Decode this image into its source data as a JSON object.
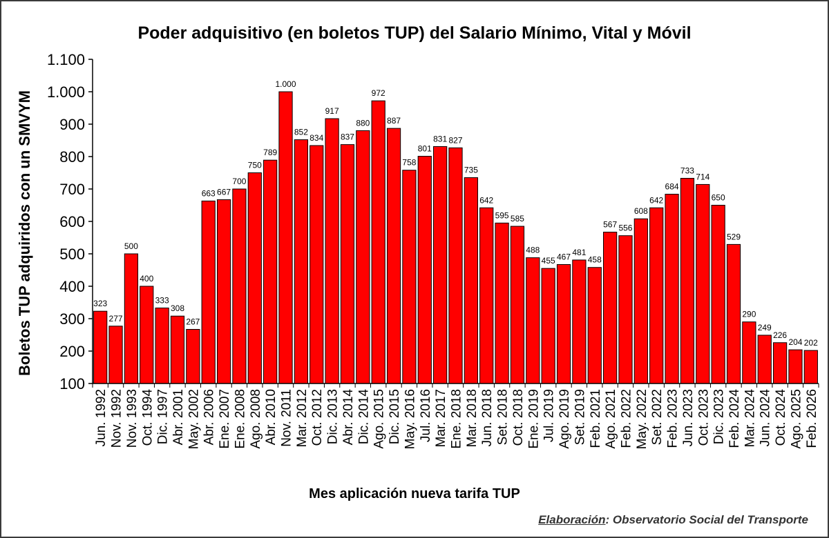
{
  "title": "Poder adquisitivo (en boletos TUP) del Salario Mínimo, Vital y Móvil",
  "credit": {
    "prefix": "Elaboración",
    "text": ": Observatorio Social del Transporte"
  },
  "colors": {
    "bar": "#ff0000",
    "bar_edge": "#000000",
    "axis": "#000000"
  },
  "chart_data": {
    "type": "bar",
    "title": "Poder adquisitivo (en boletos TUP) del Salario Mínimo, Vital y Móvil",
    "xlabel": "Mes aplicación nueva tarifa TUP",
    "ylabel": "Boletos TUP adquiridos con un SMVYM",
    "ylim": [
      100,
      1100
    ],
    "y_ticks": [
      100,
      200,
      300,
      400,
      500,
      600,
      700,
      800,
      900,
      1000,
      1100
    ],
    "y_tick_labels": [
      "100",
      "200",
      "300",
      "400",
      "500",
      "600",
      "700",
      "800",
      "900",
      "1.000",
      "1.100"
    ],
    "grid": false,
    "legend": "none",
    "categories": [
      "Jun. 1992",
      "Nov. 1992",
      "Nov. 1993",
      "Oct. 1994",
      "Dic. 1997",
      "Abr. 2001",
      "May. 2002",
      "Abr. 2006",
      "Ene. 2007",
      "Ene. 2008",
      "Ago. 2008",
      "Abr. 2010",
      "Nov. 2011",
      "Mar. 2012",
      "Oct. 2012",
      "Dic. 2013",
      "Abr. 2014",
      "Dic. 2014",
      "Ago. 2015",
      "Dic. 2015",
      "May. 2016",
      "Jul. 2016",
      "Mar. 2017",
      "Ene. 2018",
      "Mar. 2018",
      "Jun. 2018",
      "Set. 2018",
      "Oct. 2018",
      "Ene. 2019",
      "Jul. 2019",
      "Ago. 2019",
      "Set. 2019",
      "Feb. 2021",
      "Ago. 2021",
      "Feb. 2022",
      "May. 2022",
      "Set. 2022",
      "Feb. 2023",
      "Jun. 2023",
      "Oct. 2023",
      "Dic. 2023",
      "Feb. 2024",
      "Mar. 2024",
      "Jun. 2024",
      "Oct. 2024",
      "Ago. 2025",
      "Feb. 2026"
    ],
    "values": [
      323,
      277,
      500,
      400,
      333,
      308,
      267,
      663,
      667,
      700,
      750,
      789,
      1000,
      852,
      834,
      917,
      837,
      880,
      972,
      887,
      758,
      801,
      831,
      827,
      735,
      642,
      595,
      585,
      488,
      455,
      467,
      481,
      458,
      567,
      556,
      608,
      642,
      684,
      733,
      714,
      650,
      529,
      290,
      249,
      226,
      204,
      202
    ],
    "value_labels": [
      "323",
      "277",
      "500",
      "400",
      "333",
      "308",
      "267",
      "663",
      "667",
      "700",
      "750",
      "789",
      "1.000",
      "852",
      "834",
      "917",
      "837",
      "880",
      "972",
      "887",
      "758",
      "801",
      "831",
      "827",
      "735",
      "642",
      "595",
      "585",
      "488",
      "455",
      "467",
      "481",
      "458",
      "567",
      "556",
      "608",
      "642",
      "684",
      "733",
      "714",
      "650",
      "529",
      "290",
      "249",
      "226",
      "204",
      "202"
    ]
  }
}
